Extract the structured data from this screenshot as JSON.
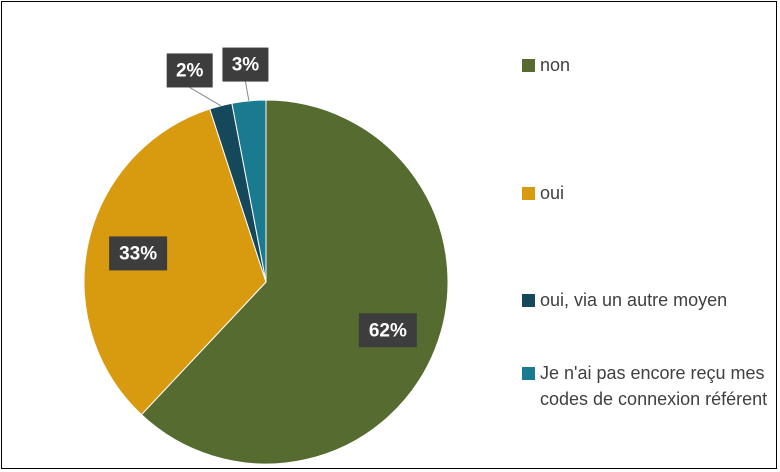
{
  "chart_data": {
    "type": "pie",
    "categories": [
      "non",
      "oui",
      "oui, via un autre moyen",
      "Je n'ai pas encore reçu mes codes de connexion référent"
    ],
    "values": [
      62,
      33,
      2,
      3
    ],
    "value_labels": [
      "62%",
      "33%",
      "2%",
      "3%"
    ],
    "colors": [
      "#566b30",
      "#d89a0f",
      "#15485a",
      "#1a7b90"
    ],
    "legend": "right"
  }
}
